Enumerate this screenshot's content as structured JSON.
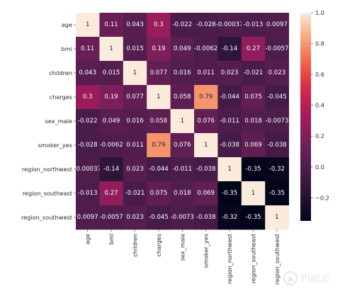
{
  "chart_data": {
    "type": "heatmap",
    "title": "",
    "xlabel": "",
    "ylabel": "",
    "variables": [
      "age",
      "bmi",
      "children",
      "charges",
      "sex_male",
      "smoker_yes",
      "region_northwest",
      "region_southeast",
      "region_southwest"
    ],
    "values": [
      [
        1,
        0.11,
        0.043,
        0.3,
        -0.022,
        -0.028,
        -0.00037,
        -0.013,
        0.0097
      ],
      [
        0.11,
        1,
        0.015,
        0.19,
        0.049,
        -0.0062,
        -0.14,
        0.27,
        -0.0057
      ],
      [
        0.043,
        0.015,
        1,
        0.077,
        0.016,
        0.011,
        0.023,
        -0.021,
        0.023
      ],
      [
        0.3,
        0.19,
        0.077,
        1,
        0.058,
        0.79,
        -0.044,
        0.075,
        -0.045
      ],
      [
        -0.022,
        0.049,
        0.016,
        0.058,
        1,
        0.076,
        -0.011,
        0.018,
        -0.0073
      ],
      [
        -0.028,
        -0.0062,
        0.011,
        0.79,
        0.076,
        1,
        -0.038,
        0.069,
        -0.038
      ],
      [
        -0.00037,
        -0.14,
        0.023,
        -0.044,
        -0.011,
        -0.038,
        1,
        -0.35,
        -0.32
      ],
      [
        -0.013,
        0.27,
        -0.021,
        0.075,
        0.018,
        0.069,
        -0.35,
        1,
        -0.35
      ],
      [
        0.0097,
        -0.0057,
        0.023,
        -0.045,
        -0.0073,
        -0.038,
        -0.32,
        -0.35,
        1
      ]
    ],
    "value_labels": [
      [
        "1",
        "0.11",
        "0.043",
        "0.3",
        "-0.022",
        "-0.028",
        "-0.00037",
        "-0.013",
        "0.0097"
      ],
      [
        "0.11",
        "1",
        "0.015",
        "0.19",
        "0.049",
        "-0.0062",
        "-0.14",
        "0.27",
        "-0.0057"
      ],
      [
        "0.043",
        "0.015",
        "1",
        "0.077",
        "0.016",
        "0.011",
        "0.023",
        "-0.021",
        "0.023"
      ],
      [
        "0.3",
        "0.19",
        "0.077",
        "1",
        "0.058",
        "0.79",
        "-0.044",
        "0.075",
        "-0.045"
      ],
      [
        "-0.022",
        "0.049",
        "0.016",
        "0.058",
        "1",
        "0.076",
        "-0.011",
        "0.018",
        "-0.0073"
      ],
      [
        "-0.028",
        "-0.0062",
        "0.011",
        "0.79",
        "0.076",
        "1",
        "-0.038",
        "0.069",
        "-0.038"
      ],
      [
        "-0.00037",
        "-0.14",
        "0.023",
        "-0.044",
        "-0.011",
        "-0.038",
        "1",
        "-0.35",
        "-0.32"
      ],
      [
        "-0.013",
        "0.27",
        "-0.021",
        "0.075",
        "0.018",
        "0.069",
        "-0.35",
        "1",
        "-0.35"
      ],
      [
        "0.0097",
        "-0.0057",
        "0.023",
        "-0.045",
        "-0.0073",
        "-0.038",
        "-0.32",
        "-0.35",
        "1"
      ]
    ],
    "colorbar": {
      "range": [
        -0.35,
        1.0
      ],
      "ticks": [
        1.0,
        0.8,
        0.6,
        0.4,
        0.2,
        0.0,
        -0.2
      ],
      "tick_labels": [
        "1.0",
        "0.8",
        "0.6",
        "0.4",
        "0.2",
        "0.0",
        "−0.2"
      ]
    },
    "colormap": "rocket",
    "grid": false,
    "legend": "colorbar at right"
  },
  "watermark": {
    "text": "Platzi",
    "icon": "platzi-logo-icon"
  }
}
